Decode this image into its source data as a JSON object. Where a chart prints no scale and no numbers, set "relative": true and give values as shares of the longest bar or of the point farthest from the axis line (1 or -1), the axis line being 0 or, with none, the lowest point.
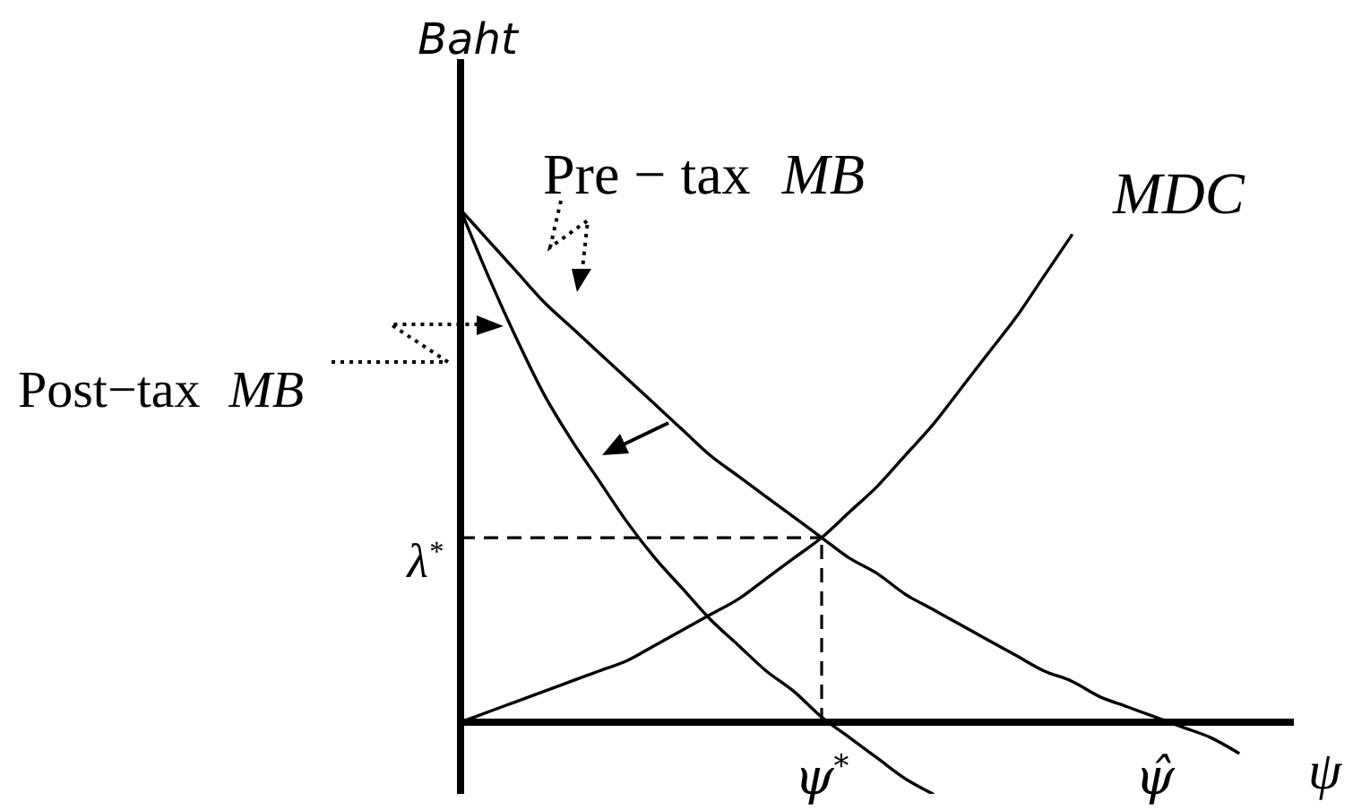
{
  "chart_data": {
    "type": "line",
    "relative": true,
    "ylabel": "Baht",
    "xlabel": "ψ",
    "categories": [
      null,
      null,
      null,
      null,
      null,
      null,
      null,
      null,
      null,
      null,
      null,
      null,
      null,
      "ψ$^{*}$",
      null,
      null,
      null,
      null,
      null,
      null,
      null,
      null,
      null,
      null,
      null,
      "ψ̂",
      null,
      null,
      null,
      null,
      null
    ],
    "series": [
      {
        "name": "Pre − tax MB",
        "color": "#000000",
        "values": [
          1,
          0.94,
          0.88,
          0.82,
          0.77,
          0.72,
          0.67,
          0.62,
          0.57,
          0.52,
          0.48,
          0.44,
          0.4,
          0.36,
          0.32,
          0.29,
          0.25,
          0.22,
          0.19,
          0.16,
          0.13,
          0.1,
          0.08,
          0.05,
          0.03,
          0.01,
          -0.01,
          -0.03,
          -0.06,
          null,
          null
        ]
      },
      {
        "name": "Post−tax MB",
        "color": "#000000",
        "values": [
          1,
          0.87,
          0.75,
          0.64,
          0.55,
          0.47,
          0.39,
          0.32,
          0.26,
          0.2,
          0.15,
          0.1,
          0.06,
          0.01,
          -0.03,
          -0.07,
          -0.11,
          -0.14,
          null,
          null,
          null,
          null,
          null,
          null,
          null,
          null,
          null,
          null,
          null,
          null,
          null
        ]
      },
      {
        "name": "MDC",
        "color": "#000000",
        "values": [
          0,
          0.02,
          0.04,
          0.06,
          0.08,
          0.1,
          0.12,
          0.15,
          0.18,
          0.21,
          0.24,
          0.28,
          0.32,
          0.36,
          0.41,
          0.46,
          0.52,
          0.58,
          0.65,
          0.72,
          0.79,
          0.87,
          0.95,
          null,
          null,
          null,
          null,
          null,
          null,
          null,
          null
        ]
      }
    ],
    "ref_lines": [
      {
        "axis": "y",
        "value": 0.36,
        "label": "λ$^{*}$",
        "line_style": "dashed",
        "color": "#000000"
      },
      {
        "axis": "x",
        "value": "ψ$^{*}$",
        "line_style": "dashed",
        "color": "#000000"
      }
    ]
  }
}
